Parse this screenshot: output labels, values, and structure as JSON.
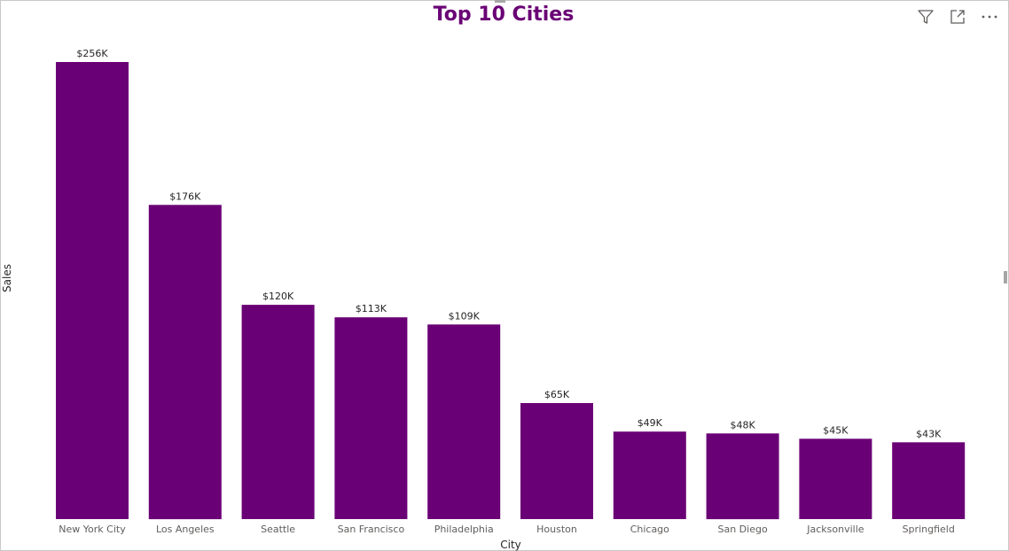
{
  "chart_data": {
    "type": "bar",
    "title": "Top 10 Cities",
    "xlabel": "City",
    "ylabel": "Sales",
    "categories": [
      "New York City",
      "Los Angeles",
      "Seattle",
      "San Francisco",
      "Philadelphia",
      "Houston",
      "Chicago",
      "San Diego",
      "Jacksonville",
      "Springfield"
    ],
    "values": [
      256,
      176,
      120,
      113,
      109,
      65,
      49,
      48,
      45,
      43
    ],
    "value_labels": [
      "$256K",
      "$176K",
      "$120K",
      "$113K",
      "$109K",
      "$65K",
      "$49K",
      "$48K",
      "$45K",
      "$43K"
    ],
    "ylim": [
      0,
      256
    ],
    "grid": false,
    "legend": "none",
    "bar_color": "#6a0075",
    "title_color": "#6a0075"
  },
  "toolbar": {
    "icons": [
      "filter-icon",
      "focus-mode-icon",
      "more-options-icon"
    ]
  }
}
